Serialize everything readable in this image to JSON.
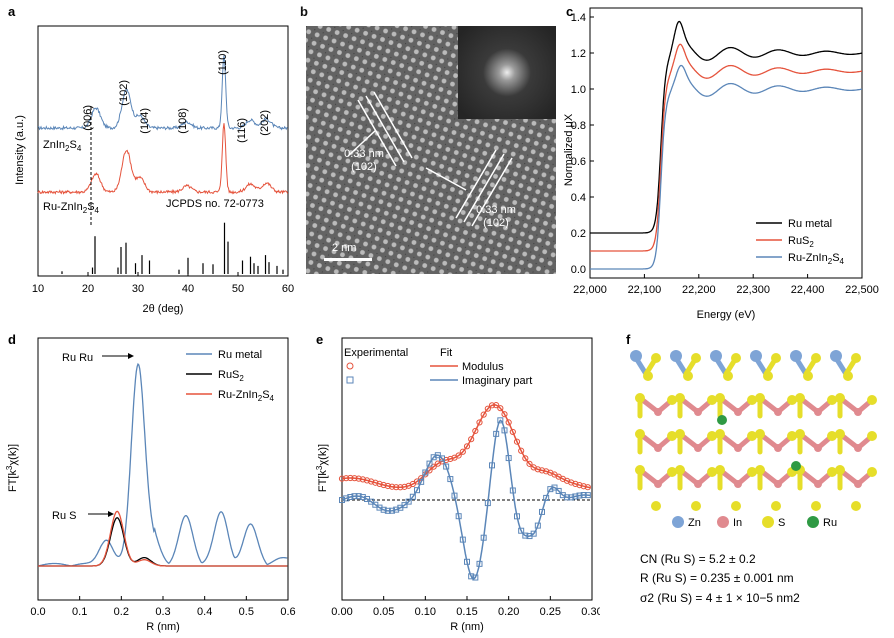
{
  "panel_letters": {
    "a": "a",
    "b": "b",
    "c": "c",
    "d": "d",
    "e": "e",
    "f": "f"
  },
  "colors": {
    "blue": "#5b86b8",
    "red": "#e5533c",
    "black": "#000000"
  },
  "chart_data": [
    {
      "id": "a",
      "type": "line",
      "xlabel": "2θ (deg)",
      "ylabel": "Intensity (a.u.)",
      "xlim": [
        10,
        60
      ],
      "xticks": [
        10,
        20,
        30,
        40,
        50,
        60
      ],
      "series": [
        {
          "name": "ZnIn2S4",
          "label_main": "ZnIn",
          "label_sub1": "2",
          "label_mid": "S",
          "label_sub2": "4",
          "color": "#5b86b8",
          "peaks": [
            [
              21.6,
              20
            ],
            [
              27.7,
              38
            ],
            [
              30.4,
              12
            ],
            [
              39.8,
              6
            ],
            [
              47.2,
              72
            ],
            [
              52.5,
              8
            ],
            [
              55.7,
              9
            ]
          ]
        },
        {
          "name": "Ru-ZnIn2S4",
          "label_main": "Ru-ZnIn",
          "label_sub1": "2",
          "label_mid": "S",
          "label_sub2": "4",
          "color": "#e5533c",
          "peaks": [
            [
              21.6,
              18
            ],
            [
              27.7,
              42
            ],
            [
              30.4,
              14
            ],
            [
              39.8,
              6
            ],
            [
              47.2,
              68
            ],
            [
              52.5,
              8
            ],
            [
              55.7,
              9
            ]
          ]
        }
      ],
      "reflections": [
        "(006)",
        "(102)",
        "(104)",
        "(108)",
        "(110)",
        "(116)",
        "(202)"
      ],
      "reference_label": "JCPDS no. 72-0773",
      "reference_sticks": [
        [
          14.8,
          0.05
        ],
        [
          20.9,
          0.12
        ],
        [
          21.4,
          0.7
        ],
        [
          26.0,
          0.12
        ],
        [
          26.6,
          0.5
        ],
        [
          27.6,
          0.58
        ],
        [
          29.5,
          0.2
        ],
        [
          30.8,
          0.35
        ],
        [
          32.3,
          0.25
        ],
        [
          38.2,
          0.08
        ],
        [
          40.0,
          0.3
        ],
        [
          43.0,
          0.2
        ],
        [
          45.0,
          0.18
        ],
        [
          47.3,
          0.95
        ],
        [
          48.0,
          0.6
        ],
        [
          50.9,
          0.25
        ],
        [
          52.5,
          0.32
        ],
        [
          53.2,
          0.2
        ],
        [
          54.0,
          0.15
        ],
        [
          55.5,
          0.35
        ],
        [
          56.2,
          0.22
        ],
        [
          57.8,
          0.15
        ],
        [
          59.0,
          0.08
        ]
      ]
    },
    {
      "id": "c",
      "type": "line",
      "xlabel": "Energy (eV)",
      "ylabel": "Normalized μX",
      "xlim": [
        22000,
        22500
      ],
      "ylim": [
        -0.05,
        1.45
      ],
      "xticks": [
        "22,000",
        "22,100",
        "22,200",
        "22,300",
        "22,400",
        "22,500"
      ],
      "xtick_values": [
        22000,
        22100,
        22200,
        22300,
        22400,
        22500
      ],
      "yticks": [
        "0.0",
        "0.2",
        "0.4",
        "0.6",
        "0.8",
        "1.0",
        "1.2",
        "1.4"
      ],
      "ytick_values": [
        0.0,
        0.2,
        0.4,
        0.6,
        0.8,
        1.0,
        1.2,
        1.4
      ],
      "legend": "bottom-right",
      "series": [
        {
          "name": "Ru metal",
          "label_main": "Ru metal",
          "color": "#000000",
          "pre_edge": 0.2,
          "post_edge": 1.2,
          "white_line": 1.33
        },
        {
          "name": "RuS2",
          "label_main": "RuS",
          "label_sub1": "2",
          "color": "#e5533c",
          "pre_edge": 0.1,
          "post_edge": 1.1,
          "white_line": 1.2
        },
        {
          "name": "Ru-ZnIn2S4",
          "label_main": "Ru-ZnIn",
          "label_sub1": "2",
          "label_mid": "S",
          "label_sub2": "4",
          "color": "#5b86b8",
          "pre_edge": 0.0,
          "post_edge": 1.0,
          "white_line": 1.08
        }
      ]
    },
    {
      "id": "d",
      "type": "line",
      "xlabel": "R (nm)",
      "ylabel": "FT[k3χ(k)]",
      "xlim": [
        0.0,
        0.6
      ],
      "xticks": [
        "0.0",
        "0.1",
        "0.2",
        "0.3",
        "0.4",
        "0.5",
        "0.6"
      ],
      "xtick_values": [
        0.0,
        0.1,
        0.2,
        0.3,
        0.4,
        0.5,
        0.6
      ],
      "legend": "top-right",
      "annotations": [
        "Ru Ru",
        "Ru S"
      ],
      "series": [
        {
          "name": "Ru metal",
          "label_main": "Ru metal",
          "color": "#5b86b8",
          "peaks": [
            [
              0.163,
              12
            ],
            [
              0.24,
              95
            ],
            [
              0.275,
              10
            ],
            [
              0.355,
              20
            ],
            [
              0.44,
              22
            ],
            [
              0.51,
              16
            ]
          ]
        },
        {
          "name": "RuS2",
          "label_main": "RuS",
          "label_sub1": "2",
          "color": "#000000",
          "peaks": [
            [
              0.19,
              23
            ],
            [
              0.255,
              4
            ]
          ]
        },
        {
          "name": "Ru-ZnIn2S4",
          "label_main": "Ru-ZnIn",
          "label_sub1": "2",
          "label_mid": "S",
          "label_sub2": "4",
          "color": "#e5533c",
          "peaks": [
            [
              0.19,
              26
            ],
            [
              0.255,
              3
            ]
          ]
        }
      ]
    },
    {
      "id": "e",
      "type": "line",
      "xlabel": "R (nm)",
      "ylabel": "FT[k3χ(k)]",
      "xlim": [
        0.0,
        0.3
      ],
      "xticks": [
        "0.00",
        "0.05",
        "0.10",
        "0.15",
        "0.20",
        "0.25",
        "0.30"
      ],
      "xtick_values": [
        0.0,
        0.05,
        0.1,
        0.15,
        0.2,
        0.25,
        0.3
      ],
      "legend_header": {
        "experimental": "Experimental",
        "fit": "Fit"
      },
      "legend": "top-left",
      "series": [
        {
          "name": "Modulus",
          "color": "#e5533c"
        },
        {
          "name": "Imaginary part",
          "color": "#5b86b8"
        }
      ]
    }
  ],
  "panel_b": {
    "scale_bar": "2 nm",
    "lattice_labels": [
      {
        "spacing": "0.33 nm",
        "plane": "(102)"
      },
      {
        "spacing": "0.33 nm",
        "plane": "(102)"
      }
    ]
  },
  "panel_f": {
    "legend": [
      {
        "label": "Zn",
        "color": "#7ea4d6"
      },
      {
        "label": "In",
        "color": "#e08a8f"
      },
      {
        "label": "S",
        "color": "#e6de2a"
      },
      {
        "label": "Ru",
        "color": "#2f9a44"
      }
    ],
    "cn_text": "CN (Ru S) = 5.2 ± 0.2",
    "r_text": "R (Ru S) = 0.235 ± 0.001 nm",
    "sigma_text": "σ2 (Ru S) = 4 ± 1 × 10−5 nm2"
  }
}
